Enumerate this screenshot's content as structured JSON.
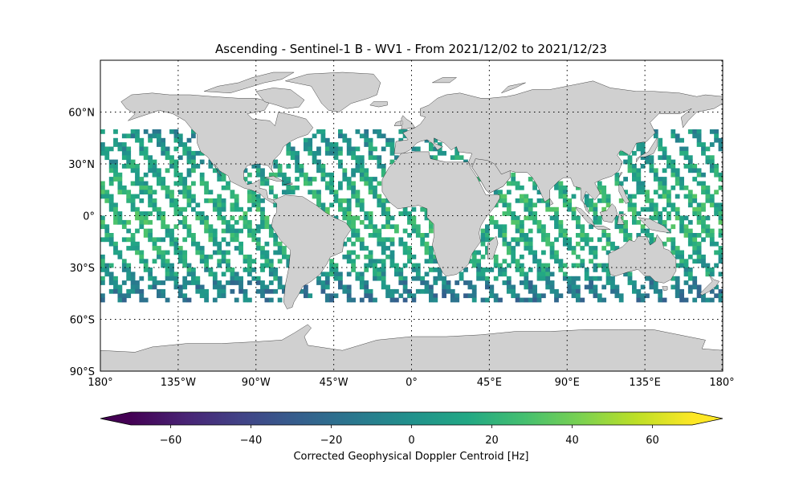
{
  "title": "Ascending - Sentinel-1 B - WV1 - From 2021/12/02 to 2021/12/23",
  "lat_ticks": [
    {
      "value": 60,
      "label": "60°N"
    },
    {
      "value": 30,
      "label": "30°N"
    },
    {
      "value": 0,
      "label": "0°"
    },
    {
      "value": -30,
      "label": "30°S"
    },
    {
      "value": -60,
      "label": "60°S"
    },
    {
      "value": -90,
      "label": "90°S"
    }
  ],
  "lon_ticks": [
    {
      "value": -180,
      "label": "180°"
    },
    {
      "value": -135,
      "label": "135°W"
    },
    {
      "value": -90,
      "label": "90°W"
    },
    {
      "value": -45,
      "label": "45°W"
    },
    {
      "value": 0,
      "label": "0°"
    },
    {
      "value": 45,
      "label": "45°E"
    },
    {
      "value": 90,
      "label": "90°E"
    },
    {
      "value": 135,
      "label": "135°E"
    },
    {
      "value": 180,
      "label": "180°"
    }
  ],
  "colorbar": {
    "label": "Corrected Geophysical Doppler Centroid [Hz]",
    "min": -70,
    "max": 70,
    "colormap": "viridis",
    "extend": "both",
    "ticks": [
      {
        "value": -60,
        "label": "−60"
      },
      {
        "value": -40,
        "label": "−40"
      },
      {
        "value": -20,
        "label": "−20"
      },
      {
        "value": 0,
        "label": "0"
      },
      {
        "value": 20,
        "label": "20"
      },
      {
        "value": 40,
        "label": "40"
      },
      {
        "value": 60,
        "label": "60"
      }
    ]
  },
  "map": {
    "projection": "PlateCarree",
    "lon_range": [
      -180,
      180
    ],
    "lat_range": [
      -90,
      90
    ],
    "land_color": "#d0d0d0",
    "gridlines": "dotted",
    "data_lat_range": [
      -50,
      50
    ]
  }
}
